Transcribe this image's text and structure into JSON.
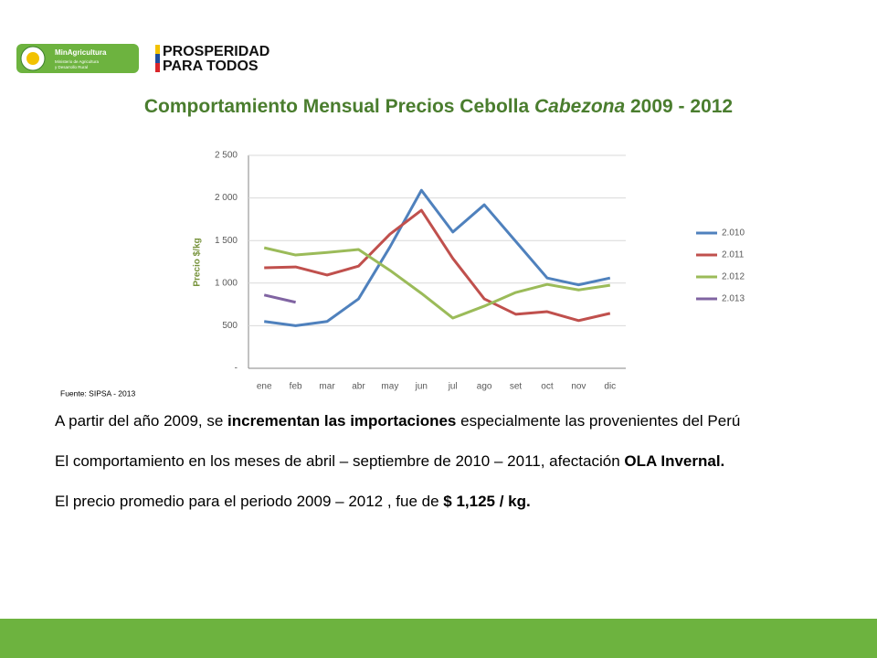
{
  "logos": {
    "ministry": "MinAgricultura",
    "ministry_sub": [
      "Ministerio de Agricultura",
      "y Desarrollo Rural"
    ],
    "slogan": [
      "PROSPERIDAD",
      "PARA TODOS"
    ]
  },
  "source": "Fuente: SIPSA - 2013",
  "paragraphs": [
    [
      {
        "text": "A partir del año 2009, se ",
        "bold": false
      },
      {
        "text": "incrementan las importaciones",
        "bold": true
      },
      {
        "text": " especialmente las provenientes del Perú",
        "bold": false
      }
    ],
    [
      {
        "text": "El comportamiento en los meses de abril – septiembre de 2010 – 2011, afectación ",
        "bold": false
      },
      {
        "text": "OLA Invernal.",
        "bold": true
      }
    ],
    [
      {
        "text": "El precio promedio para el periodo 2009 – 2012 , fue de ",
        "bold": false
      },
      {
        "text": "$ 1,125 / kg.",
        "bold": true
      }
    ]
  ],
  "chart_data": {
    "type": "line",
    "title": "Comportamiento Mensual Precios Cebolla ",
    "title_italic": "Cabezona",
    "title_end": " 2009 - 2012",
    "ylabel": "Precio $/kg",
    "categories": [
      "ene",
      "feb",
      "mar",
      "abr",
      "may",
      "jun",
      "jul",
      "ago",
      "set",
      "oct",
      "nov",
      "dic"
    ],
    "series": [
      {
        "name": "2.010",
        "color": "#4f81bd",
        "values": [
          550,
          500,
          550,
          815,
          1425,
          2090,
          1600,
          1920,
          1490,
          1060,
          980,
          1060
        ]
      },
      {
        "name": "2.011",
        "color": "#c0504d",
        "values": [
          1180,
          1190,
          1095,
          1200,
          1575,
          1855,
          1290,
          815,
          635,
          665,
          560,
          645
        ]
      },
      {
        "name": "2.012",
        "color": "#9bbb59",
        "values": [
          1415,
          1330,
          1360,
          1395,
          1150,
          880,
          590,
          730,
          890,
          985,
          920,
          975
        ]
      },
      {
        "name": "2.013",
        "color": "#8064a2",
        "values": [
          860,
          775,
          null,
          null,
          null,
          null,
          null,
          null,
          null,
          null,
          null,
          null
        ]
      }
    ],
    "ylim": [
      0,
      2500
    ],
    "yticks": [
      {
        "value": 0,
        "label": "-"
      },
      {
        "value": 500,
        "label": "500"
      },
      {
        "value": 1000,
        "label": "1 000"
      },
      {
        "value": 1500,
        "label": "1 500"
      },
      {
        "value": 2000,
        "label": "2 000"
      },
      {
        "value": 2500,
        "label": "2 500"
      }
    ],
    "grid": true,
    "legend": "right"
  }
}
